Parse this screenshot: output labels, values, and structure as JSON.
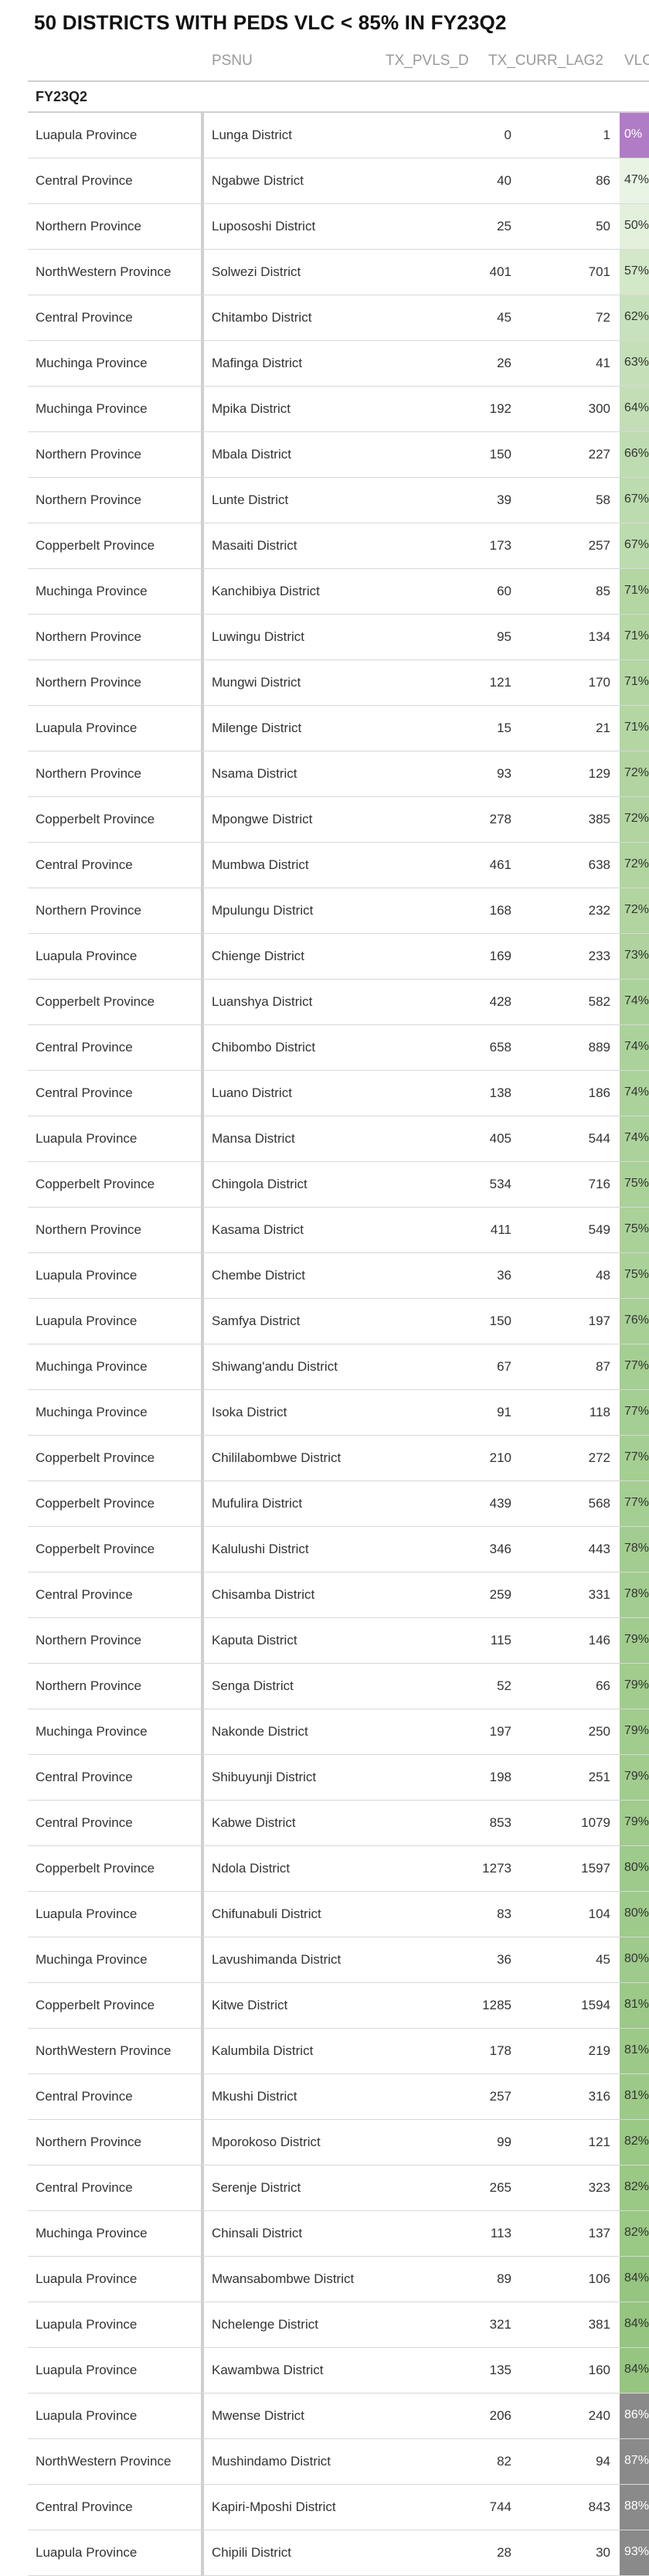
{
  "title": "50 DISTRICTS WITH PEDS VLC < 85% IN FY23Q2",
  "columns": {
    "psnu": "PSNU",
    "pvls": "TX_PVLS_D",
    "curr": "TX_CURR_LAG2",
    "vlc": "VLC"
  },
  "group_label": "FY23Q2",
  "colors": {
    "low": "#b07cc6",
    "mid_start": "#eef6ea",
    "mid_end": "#93c47d",
    "high": "#8a8a8a",
    "text_dark": "#333333",
    "text_light": "#ffffff"
  },
  "rows": [
    {
      "province": "Luapula Province",
      "psnu": "Lunga District",
      "pvls": "0",
      "curr": "1",
      "vlc": "0%"
    },
    {
      "province": "Central Province",
      "psnu": "Ngabwe District",
      "pvls": "40",
      "curr": "86",
      "vlc": "47%"
    },
    {
      "province": "Northern Province",
      "psnu": "Lupososhi District",
      "pvls": "25",
      "curr": "50",
      "vlc": "50%"
    },
    {
      "province": "NorthWestern Province",
      "psnu": "Solwezi District",
      "pvls": "401",
      "curr": "701",
      "vlc": "57%"
    },
    {
      "province": "Central Province",
      "psnu": "Chitambo District",
      "pvls": "45",
      "curr": "72",
      "vlc": "62%"
    },
    {
      "province": "Muchinga Province",
      "psnu": "Mafinga District",
      "pvls": "26",
      "curr": "41",
      "vlc": "63%"
    },
    {
      "province": "Muchinga Province",
      "psnu": "Mpika District",
      "pvls": "192",
      "curr": "300",
      "vlc": "64%"
    },
    {
      "province": "Northern Province",
      "psnu": "Mbala District",
      "pvls": "150",
      "curr": "227",
      "vlc": "66%"
    },
    {
      "province": "Northern Province",
      "psnu": "Lunte District",
      "pvls": "39",
      "curr": "58",
      "vlc": "67%"
    },
    {
      "province": "Copperbelt Province",
      "psnu": "Masaiti District",
      "pvls": "173",
      "curr": "257",
      "vlc": "67%"
    },
    {
      "province": "Muchinga Province",
      "psnu": "Kanchibiya District",
      "pvls": "60",
      "curr": "85",
      "vlc": "71%"
    },
    {
      "province": "Northern Province",
      "psnu": "Luwingu District",
      "pvls": "95",
      "curr": "134",
      "vlc": "71%"
    },
    {
      "province": "Northern Province",
      "psnu": "Mungwi District",
      "pvls": "121",
      "curr": "170",
      "vlc": "71%"
    },
    {
      "province": "Luapula Province",
      "psnu": "Milenge District",
      "pvls": "15",
      "curr": "21",
      "vlc": "71%"
    },
    {
      "province": "Northern Province",
      "psnu": "Nsama District",
      "pvls": "93",
      "curr": "129",
      "vlc": "72%"
    },
    {
      "province": "Copperbelt Province",
      "psnu": "Mpongwe District",
      "pvls": "278",
      "curr": "385",
      "vlc": "72%"
    },
    {
      "province": "Central Province",
      "psnu": "Mumbwa District",
      "pvls": "461",
      "curr": "638",
      "vlc": "72%"
    },
    {
      "province": "Northern Province",
      "psnu": "Mpulungu District",
      "pvls": "168",
      "curr": "232",
      "vlc": "72%"
    },
    {
      "province": "Luapula Province",
      "psnu": "Chienge District",
      "pvls": "169",
      "curr": "233",
      "vlc": "73%"
    },
    {
      "province": "Copperbelt Province",
      "psnu": "Luanshya District",
      "pvls": "428",
      "curr": "582",
      "vlc": "74%"
    },
    {
      "province": "Central Province",
      "psnu": "Chibombo District",
      "pvls": "658",
      "curr": "889",
      "vlc": "74%"
    },
    {
      "province": "Central Province",
      "psnu": "Luano District",
      "pvls": "138",
      "curr": "186",
      "vlc": "74%"
    },
    {
      "province": "Luapula Province",
      "psnu": "Mansa District",
      "pvls": "405",
      "curr": "544",
      "vlc": "74%"
    },
    {
      "province": "Copperbelt Province",
      "psnu": "Chingola District",
      "pvls": "534",
      "curr": "716",
      "vlc": "75%"
    },
    {
      "province": "Northern Province",
      "psnu": "Kasama District",
      "pvls": "411",
      "curr": "549",
      "vlc": "75%"
    },
    {
      "province": "Luapula Province",
      "psnu": "Chembe District",
      "pvls": "36",
      "curr": "48",
      "vlc": "75%"
    },
    {
      "province": "Luapula Province",
      "psnu": "Samfya District",
      "pvls": "150",
      "curr": "197",
      "vlc": "76%"
    },
    {
      "province": "Muchinga Province",
      "psnu": "Shiwang'andu District",
      "pvls": "67",
      "curr": "87",
      "vlc": "77%"
    },
    {
      "province": "Muchinga Province",
      "psnu": "Isoka District",
      "pvls": "91",
      "curr": "118",
      "vlc": "77%"
    },
    {
      "province": "Copperbelt Province",
      "psnu": "Chililabombwe District",
      "pvls": "210",
      "curr": "272",
      "vlc": "77%"
    },
    {
      "province": "Copperbelt Province",
      "psnu": "Mufulira District",
      "pvls": "439",
      "curr": "568",
      "vlc": "77%"
    },
    {
      "province": "Copperbelt Province",
      "psnu": "Kalulushi District",
      "pvls": "346",
      "curr": "443",
      "vlc": "78%"
    },
    {
      "province": "Central Province",
      "psnu": "Chisamba District",
      "pvls": "259",
      "curr": "331",
      "vlc": "78%"
    },
    {
      "province": "Northern Province",
      "psnu": "Kaputa District",
      "pvls": "115",
      "curr": "146",
      "vlc": "79%"
    },
    {
      "province": "Northern Province",
      "psnu": "Senga District",
      "pvls": "52",
      "curr": "66",
      "vlc": "79%"
    },
    {
      "province": "Muchinga Province",
      "psnu": "Nakonde District",
      "pvls": "197",
      "curr": "250",
      "vlc": "79%"
    },
    {
      "province": "Central Province",
      "psnu": "Shibuyunji District",
      "pvls": "198",
      "curr": "251",
      "vlc": "79%"
    },
    {
      "province": "Central Province",
      "psnu": "Kabwe District",
      "pvls": "853",
      "curr": "1079",
      "vlc": "79%"
    },
    {
      "province": "Copperbelt Province",
      "psnu": "Ndola District",
      "pvls": "1273",
      "curr": "1597",
      "vlc": "80%"
    },
    {
      "province": "Luapula Province",
      "psnu": "Chifunabuli District",
      "pvls": "83",
      "curr": "104",
      "vlc": "80%"
    },
    {
      "province": "Muchinga Province",
      "psnu": "Lavushimanda District",
      "pvls": "36",
      "curr": "45",
      "vlc": "80%"
    },
    {
      "province": "Copperbelt Province",
      "psnu": "Kitwe District",
      "pvls": "1285",
      "curr": "1594",
      "vlc": "81%"
    },
    {
      "province": "NorthWestern Province",
      "psnu": "Kalumbila District",
      "pvls": "178",
      "curr": "219",
      "vlc": "81%"
    },
    {
      "province": "Central Province",
      "psnu": "Mkushi District",
      "pvls": "257",
      "curr": "316",
      "vlc": "81%"
    },
    {
      "province": "Northern Province",
      "psnu": "Mporokoso District",
      "pvls": "99",
      "curr": "121",
      "vlc": "82%"
    },
    {
      "province": "Central Province",
      "psnu": "Serenje District",
      "pvls": "265",
      "curr": "323",
      "vlc": "82%"
    },
    {
      "province": "Muchinga Province",
      "psnu": "Chinsali District",
      "pvls": "113",
      "curr": "137",
      "vlc": "82%"
    },
    {
      "province": "Luapula Province",
      "psnu": "Mwansabombwe District",
      "pvls": "89",
      "curr": "106",
      "vlc": "84%"
    },
    {
      "province": "Luapula Province",
      "psnu": "Nchelenge District",
      "pvls": "321",
      "curr": "381",
      "vlc": "84%"
    },
    {
      "province": "Luapula Province",
      "psnu": "Kawambwa District",
      "pvls": "135",
      "curr": "160",
      "vlc": "84%"
    },
    {
      "province": "Luapula Province",
      "psnu": "Mwense District",
      "pvls": "206",
      "curr": "240",
      "vlc": "86%"
    },
    {
      "province": "NorthWestern Province",
      "psnu": "Mushindamo District",
      "pvls": "82",
      "curr": "94",
      "vlc": "87%"
    },
    {
      "province": "Central Province",
      "psnu": "Kapiri-Mposhi District",
      "pvls": "744",
      "curr": "843",
      "vlc": "88%"
    },
    {
      "province": "Luapula Province",
      "psnu": "Chipili District",
      "pvls": "28",
      "curr": "30",
      "vlc": "93%"
    }
  ]
}
